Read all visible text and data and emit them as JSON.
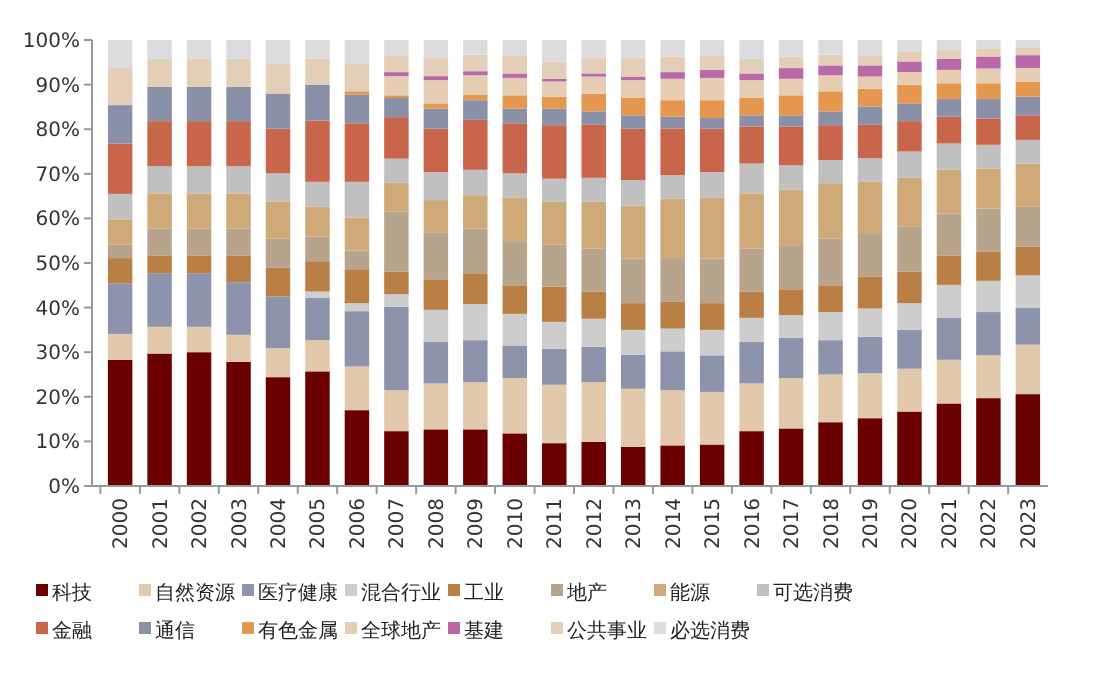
{
  "chart_data": {
    "type": "bar",
    "stacked": true,
    "legend": "bottom",
    "grid": false,
    "categories": [
      "2000",
      "2001",
      "2002",
      "2003",
      "2004",
      "2005",
      "2006",
      "2007",
      "2008",
      "2009",
      "2010",
      "2011",
      "2012",
      "2013",
      "2014",
      "2015",
      "2016",
      "2017",
      "2018",
      "2019",
      "2020",
      "2021",
      "2022",
      "2023"
    ],
    "ylim": [
      0,
      100
    ],
    "yticks": [
      {
        "value": 0,
        "label": "0%"
      },
      {
        "value": 10,
        "label": "10%"
      },
      {
        "value": 20,
        "label": "20%"
      },
      {
        "value": 30,
        "label": "30%"
      },
      {
        "value": 40,
        "label": "40%"
      },
      {
        "value": 50,
        "label": "50%"
      },
      {
        "value": 60,
        "label": "60%"
      },
      {
        "value": 70,
        "label": "70%"
      },
      {
        "value": 80,
        "label": "80%"
      },
      {
        "value": 90,
        "label": "90%"
      },
      {
        "value": 100,
        "label": "100%"
      }
    ],
    "series": [
      {
        "name": "科技",
        "color": "#6b0000",
        "values": [
          28.3,
          29.7,
          30.0,
          27.8,
          24.4,
          25.7,
          17.0,
          12.3,
          12.7,
          12.7,
          11.8,
          9.6,
          9.9,
          8.8,
          9.1,
          9.3,
          12.3,
          12.9,
          14.3,
          15.2,
          16.7,
          18.5,
          19.7,
          20.6
        ]
      },
      {
        "name": "自然资源",
        "color": "#e2c9ac",
        "values": [
          5.8,
          6.0,
          5.7,
          6.1,
          6.5,
          7.0,
          9.8,
          9.2,
          10.3,
          10.6,
          12.4,
          13.1,
          13.4,
          13.0,
          12.4,
          11.8,
          10.7,
          11.3,
          10.7,
          10.1,
          9.6,
          9.8,
          9.6,
          11.1
        ]
      },
      {
        "name": "医疗健康",
        "color": "#8c93aa",
        "values": [
          11.3,
          12.0,
          12.0,
          11.8,
          11.6,
          9.5,
          12.4,
          18.7,
          9.3,
          9.4,
          7.3,
          8.1,
          7.9,
          7.6,
          8.7,
          8.2,
          9.3,
          9.0,
          7.7,
          8.2,
          8.7,
          9.4,
          9.7,
          8.2
        ]
      },
      {
        "name": "混合行业",
        "color": "#cdcdcd",
        "values": [
          0,
          0,
          0,
          0,
          0,
          1.4,
          1.8,
          2.8,
          7.2,
          8.1,
          7.1,
          6.0,
          6.3,
          5.6,
          5.1,
          5.7,
          5.4,
          5.1,
          6.3,
          6.3,
          6.0,
          7.4,
          7.0,
          7.3
        ]
      },
      {
        "name": "工业",
        "color": "#b97f45",
        "values": [
          5.7,
          4.0,
          4.0,
          6.0,
          6.5,
          6.8,
          7.6,
          5.1,
          6.7,
          6.9,
          6.4,
          7.9,
          6.1,
          6.0,
          6.1,
          6.0,
          5.9,
          5.8,
          6.0,
          7.1,
          7.1,
          6.6,
          6.6,
          6.5
        ]
      },
      {
        "name": "地产",
        "color": "#b7a48d",
        "values": [
          3.0,
          6.0,
          6.0,
          6.0,
          6.5,
          5.5,
          4.2,
          13.5,
          10.7,
          10.0,
          9.9,
          9.4,
          9.6,
          10.0,
          9.7,
          10.0,
          9.6,
          9.9,
          10.5,
          9.8,
          10.0,
          9.4,
          9.6,
          8.9
        ]
      },
      {
        "name": "能源",
        "color": "#cfa977",
        "values": [
          5.7,
          7.9,
          7.9,
          7.9,
          8.3,
          6.7,
          7.4,
          6.4,
          7.2,
          7.5,
          9.8,
          9.6,
          10.6,
          11.9,
          13.3,
          13.6,
          12.4,
          12.4,
          12.4,
          11.6,
          11.0,
          9.8,
          9.0,
          9.7
        ]
      },
      {
        "name": "可选消费",
        "color": "#c0c0c0",
        "values": [
          5.7,
          6.1,
          6.1,
          6.1,
          6.3,
          5.6,
          8.0,
          5.4,
          6.3,
          5.7,
          5.4,
          5.2,
          5.3,
          5.7,
          5.3,
          5.8,
          6.7,
          5.5,
          5.2,
          5.2,
          5.9,
          5.9,
          5.3,
          5.3
        ]
      },
      {
        "name": "金融",
        "color": "#c8654a",
        "values": [
          11.3,
          10.1,
          10.1,
          10.1,
          10.0,
          13.7,
          13.1,
          9.3,
          9.7,
          11.2,
          11.2,
          12.0,
          11.9,
          11.5,
          10.4,
          9.7,
          8.3,
          8.7,
          7.8,
          7.5,
          6.8,
          6.0,
          5.9,
          5.5
        ]
      },
      {
        "name": "通信",
        "color": "#8990a8",
        "values": [
          8.6,
          7.7,
          7.7,
          7.7,
          7.9,
          8.1,
          6.4,
          4.3,
          4.5,
          4.4,
          3.3,
          3.7,
          3.0,
          3.0,
          2.7,
          2.4,
          2.5,
          2.5,
          3.1,
          4.1,
          4.0,
          4.0,
          4.4,
          4.2
        ]
      },
      {
        "name": "有色金属",
        "color": "#e5964f",
        "values": [
          0,
          0,
          0,
          0,
          0,
          0,
          0.8,
          0.6,
          1.2,
          1.2,
          3.0,
          2.7,
          4.0,
          3.9,
          3.7,
          4.0,
          3.9,
          4.5,
          4.5,
          4.0,
          4.2,
          3.5,
          3.5,
          3.3
        ]
      },
      {
        "name": "全球地产",
        "color": "#e4cdb2",
        "values": [
          0,
          0,
          0,
          0,
          0,
          0,
          0,
          4.3,
          5.2,
          4.4,
          3.9,
          3.4,
          3.8,
          4.0,
          4.8,
          5.0,
          4.0,
          3.7,
          3.6,
          2.7,
          2.8,
          3.0,
          3.3,
          3.1
        ]
      },
      {
        "name": "基建",
        "color": "#b968a8",
        "values": [
          0,
          0,
          0,
          0,
          0,
          0,
          0,
          0.9,
          0.9,
          0.9,
          1.0,
          0.6,
          0.7,
          0.8,
          1.5,
          1.8,
          1.5,
          2.4,
          2.2,
          2.5,
          2.4,
          2.5,
          2.7,
          2.9
        ]
      },
      {
        "name": "公共事业",
        "color": "#e3ceb8",
        "values": [
          8.3,
          6.3,
          6.3,
          6.3,
          6.8,
          5.8,
          6.3,
          3.8,
          4.1,
          3.7,
          4.1,
          3.9,
          3.5,
          4.2,
          3.5,
          3.3,
          3.3,
          2.6,
          2.4,
          2.3,
          2.3,
          2.0,
          1.8,
          1.6
        ]
      },
      {
        "name": "必选消费",
        "color": "#dcdcdf",
        "values": [
          6.3,
          4.2,
          4.2,
          4.2,
          5.2,
          4.2,
          5.2,
          3.4,
          4.0,
          3.3,
          3.4,
          4.8,
          4.0,
          4.0,
          3.7,
          3.4,
          4.2,
          3.7,
          3.3,
          3.4,
          2.5,
          2.2,
          1.9,
          1.8
        ]
      }
    ]
  }
}
